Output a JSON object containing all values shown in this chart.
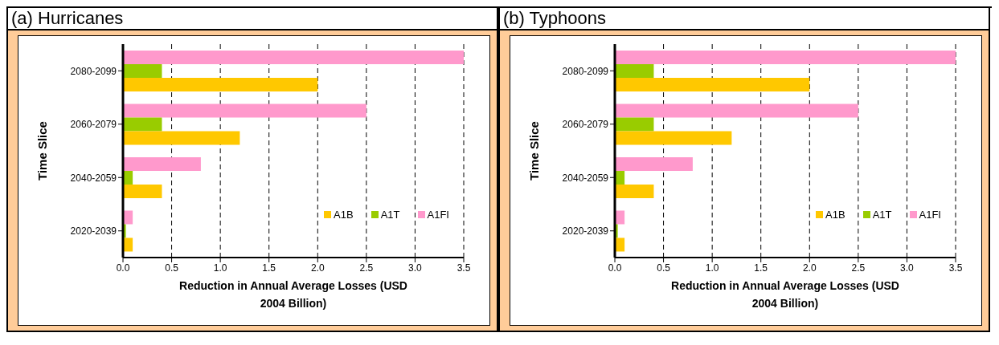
{
  "chart_data": [
    {
      "type": "bar",
      "title": "(a) Hurricanes",
      "orientation": "horizontal",
      "categories": [
        "2080-2099",
        "2060-2079",
        "2040-2059",
        "2020-2039"
      ],
      "xlabel": "Reduction in Annual Average Losses (USD 2004 Billion)",
      "ylabel": "Time Slice",
      "xlim": [
        0,
        3.5
      ],
      "xticks": [
        {
          "value": 0,
          "label": "0.0"
        },
        0.5,
        {
          "value": 1,
          "label": "1.0"
        },
        1.5,
        {
          "value": 2,
          "label": "2.0"
        },
        2.5,
        {
          "value": 3,
          "label": "3.0"
        },
        3.5
      ],
      "grid": "x",
      "legend": "bottom right",
      "series": [
        {
          "name": "A1B",
          "color": "#ffc800",
          "values": [
            2.0,
            1.2,
            0.4,
            0.1
          ]
        },
        {
          "name": "A1T",
          "color": "#99cc00",
          "values": [
            0.4,
            0.4,
            0.1,
            0.03
          ]
        },
        {
          "name": "A1FI",
          "color": "#ff99cc",
          "values": [
            3.5,
            2.5,
            0.8,
            0.1
          ]
        }
      ]
    },
    {
      "type": "bar",
      "title": "(b) Typhoons",
      "orientation": "horizontal",
      "categories": [
        "2080-2099",
        "2060-2079",
        "2040-2059",
        "2020-2039"
      ],
      "xlabel": "Reduction in Annual Average Losses (USD 2004 Billion)",
      "ylabel": "Time Slice",
      "xlim": [
        0,
        3.5
      ],
      "xticks": [
        {
          "value": 0,
          "label": "0.0"
        },
        0.5,
        {
          "value": 1,
          "label": "1.0"
        },
        1.5,
        {
          "value": 2,
          "label": "2.0"
        },
        2.5,
        {
          "value": 3,
          "label": "3.0"
        },
        3.5
      ],
      "grid": "x",
      "legend": "bottom right",
      "series": [
        {
          "name": "A1B",
          "color": "#ffc800",
          "values": [
            2.0,
            1.2,
            0.4,
            0.1
          ]
        },
        {
          "name": "A1T",
          "color": "#99cc00",
          "values": [
            0.4,
            0.4,
            0.1,
            0.03
          ]
        },
        {
          "name": "A1FI",
          "color": "#ff99cc",
          "values": [
            3.5,
            2.5,
            0.8,
            0.1
          ]
        }
      ]
    }
  ]
}
